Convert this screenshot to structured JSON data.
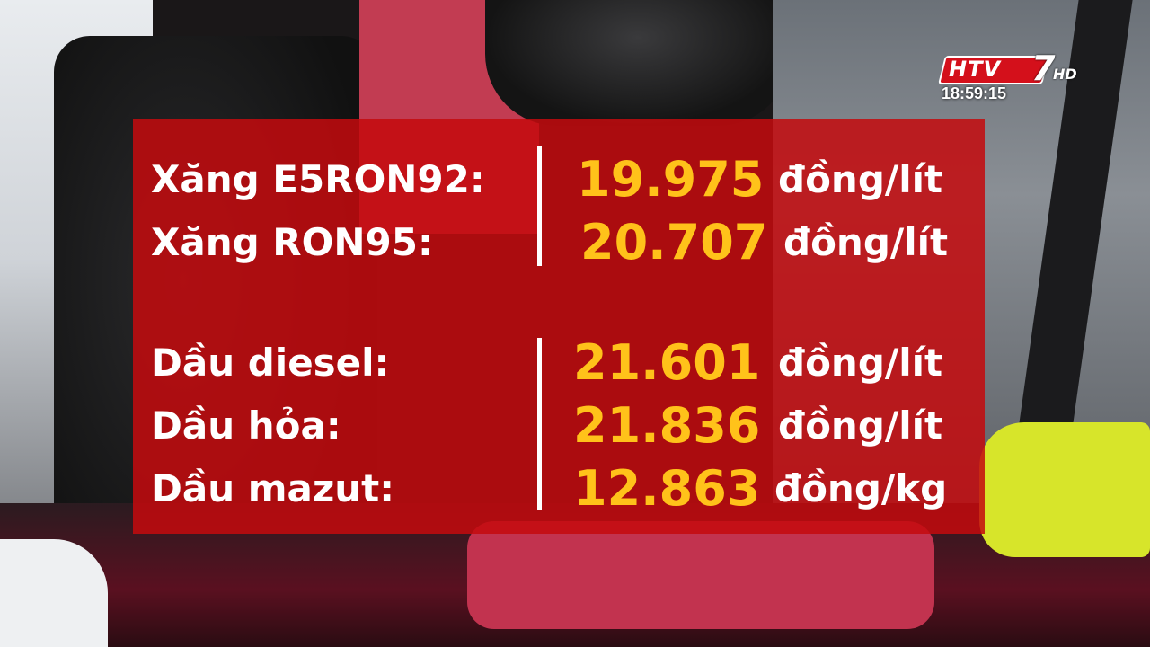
{
  "channel": {
    "logo_text": "HTV",
    "logo_seven": "7",
    "logo_hd": "HD",
    "time": "18:59:15"
  },
  "prices": {
    "gasoline": [
      {
        "label": "Xăng E5RON92:",
        "value": "19.975",
        "unit": "đồng/lít"
      },
      {
        "label": "Xăng RON95:",
        "value": "20.707",
        "unit": "đồng/lít"
      }
    ],
    "oil": [
      {
        "label": "Dầu diesel:",
        "value": "21.601",
        "unit": "đồng/lít"
      },
      {
        "label": "Dầu hỏa:",
        "value": "21.836",
        "unit": "đồng/lít"
      },
      {
        "label": "Dầu mazut:",
        "value": "12.863",
        "unit": "đồng/kg"
      }
    ]
  },
  "colors": {
    "panel": "#c40a0e",
    "value_text": "#ffc21a",
    "label_text": "#ffffff"
  }
}
